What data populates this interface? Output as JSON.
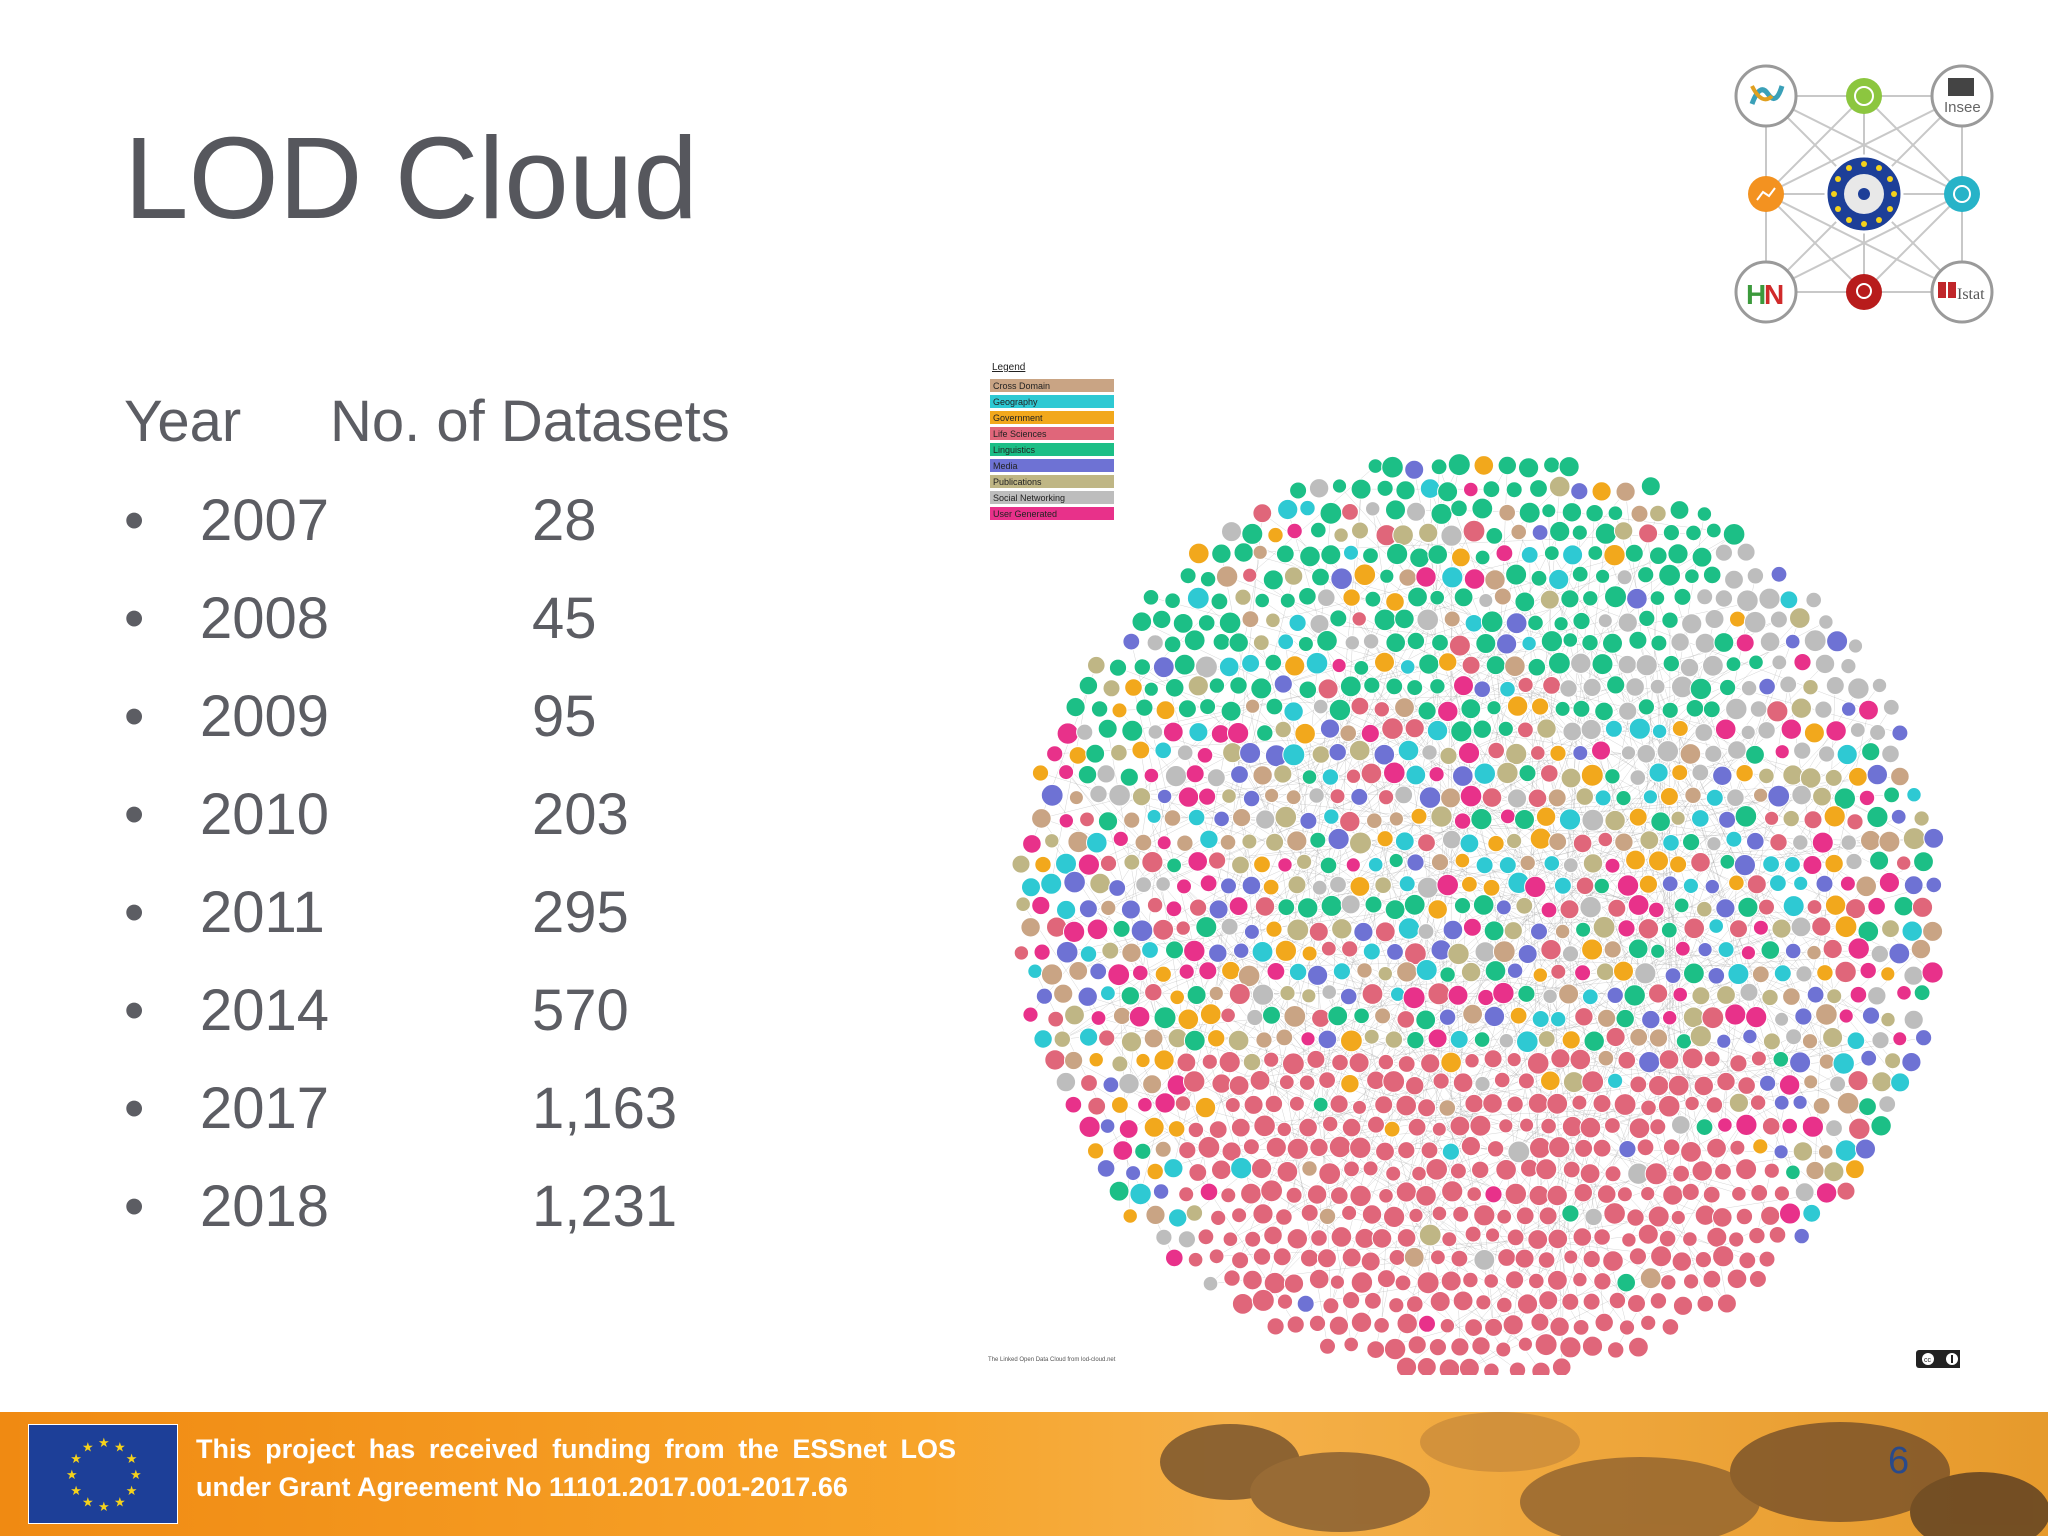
{
  "title": "LOD Cloud",
  "table": {
    "header": {
      "year": "Year",
      "datasets": "No. of Datasets"
    },
    "rows": [
      {
        "bullet": "•",
        "year": "2007",
        "datasets": "28"
      },
      {
        "bullet": "•",
        "year": "2008",
        "datasets": "45"
      },
      {
        "bullet": "•",
        "year": "2009",
        "datasets": "95"
      },
      {
        "bullet": "•",
        "year": "2010",
        "datasets": "203"
      },
      {
        "bullet": "•",
        "year": "2011",
        "datasets": "295"
      },
      {
        "bullet": "•",
        "year": "2014",
        "datasets": "570"
      },
      {
        "bullet": "•",
        "year": "2017",
        "datasets": "1,163"
      },
      {
        "bullet": "•",
        "year": "2018",
        "datasets": "1,231"
      }
    ]
  },
  "lod_cloud_image": {
    "legend_title": "Legend",
    "legend": [
      {
        "label": "Cross Domain",
        "color": "#c9a484"
      },
      {
        "label": "Geography",
        "color": "#2ec9d3"
      },
      {
        "label": "Government",
        "color": "#f2a81c"
      },
      {
        "label": "Life Sciences",
        "color": "#e0667a"
      },
      {
        "label": "Linguistics",
        "color": "#1cbf86"
      },
      {
        "label": "Media",
        "color": "#6e72d4"
      },
      {
        "label": "Publications",
        "color": "#bfb685"
      },
      {
        "label": "Social Networking",
        "color": "#bdbdbd"
      },
      {
        "label": "User Generated",
        "color": "#e8318a"
      }
    ],
    "caption": "The Linked Open Data Cloud from lod-cloud.net",
    "license_badge": "cc-by-icon"
  },
  "logo": {
    "partners": [
      "Insee",
      "Istat"
    ],
    "center_icon": "eu-stars-network-icon"
  },
  "footer": {
    "funding_line1": "This project has received funding from the ESSnet LOS",
    "funding_line2": "under Grant Agreement No 11101.2017.001-2017.66",
    "page_number": "6",
    "flag_icon": "eu-flag-icon"
  }
}
